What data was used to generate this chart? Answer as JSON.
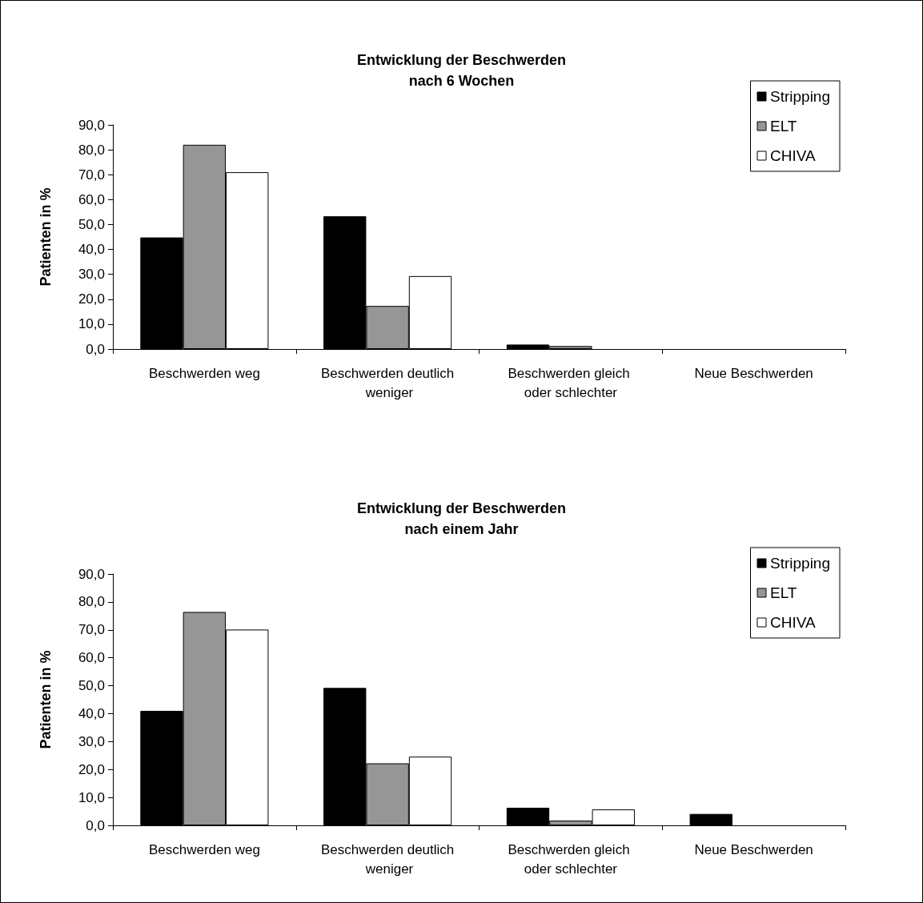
{
  "chart_data": [
    {
      "type": "bar",
      "title": "Entwicklung der Beschwerden",
      "subtitle": "nach 6 Wochen",
      "ylabel": "Patienten in %",
      "categories": [
        "Beschwerden weg",
        "Beschwerden deutlich weniger",
        "Beschwerden gleich oder schlechter",
        "Neue Beschwerden"
      ],
      "series": [
        {
          "name": "Stripping",
          "color": "#000000",
          "values": [
            44.8,
            53.3,
            1.8,
            0
          ]
        },
        {
          "name": "ELT",
          "color": "#969696",
          "values": [
            82.0,
            17.3,
            1.2,
            0
          ]
        },
        {
          "name": "CHIVA",
          "color": "#ffffff",
          "values": [
            71.0,
            29.3,
            0,
            0
          ]
        }
      ],
      "ylim": [
        0,
        90
      ],
      "yticks": [
        {
          "value": 0,
          "label": "0,0"
        },
        {
          "value": 10,
          "label": "10,0"
        },
        {
          "value": 20,
          "label": "20,0"
        },
        {
          "value": 30,
          "label": "30,0"
        },
        {
          "value": 40,
          "label": "40,0"
        },
        {
          "value": 50,
          "label": "50,0"
        },
        {
          "value": 60,
          "label": "60,0"
        },
        {
          "value": 70,
          "label": "70,0"
        },
        {
          "value": 80,
          "label": "80,0"
        },
        {
          "value": 90,
          "label": "90,0"
        }
      ],
      "legend": "top right",
      "grid": false
    },
    {
      "type": "bar",
      "title": "Entwicklung der Beschwerden",
      "subtitle": "nach einem Jahr",
      "ylabel": "Patienten in %",
      "categories": [
        "Beschwerden weg",
        "Beschwerden deutlich weniger",
        "Beschwerden gleich oder schlechter",
        "Neue Beschwerden"
      ],
      "series": [
        {
          "name": "Stripping",
          "color": "#000000",
          "values": [
            41.0,
            49.2,
            6.3,
            4.1
          ]
        },
        {
          "name": "ELT",
          "color": "#969696",
          "values": [
            76.4,
            22.2,
            1.7,
            0
          ]
        },
        {
          "name": "CHIVA",
          "color": "#ffffff",
          "values": [
            70.1,
            24.6,
            5.7,
            0
          ]
        }
      ],
      "ylim": [
        0,
        90
      ],
      "yticks": [
        {
          "value": 0,
          "label": "0,0"
        },
        {
          "value": 10,
          "label": "10,0"
        },
        {
          "value": 20,
          "label": "20,0"
        },
        {
          "value": 30,
          "label": "30,0"
        },
        {
          "value": 40,
          "label": "40,0"
        },
        {
          "value": 50,
          "label": "50,0"
        },
        {
          "value": 60,
          "label": "60,0"
        },
        {
          "value": 70,
          "label": "70,0"
        },
        {
          "value": 80,
          "label": "80,0"
        },
        {
          "value": 90,
          "label": "90,0"
        }
      ],
      "legend": "top right",
      "grid": false
    }
  ]
}
